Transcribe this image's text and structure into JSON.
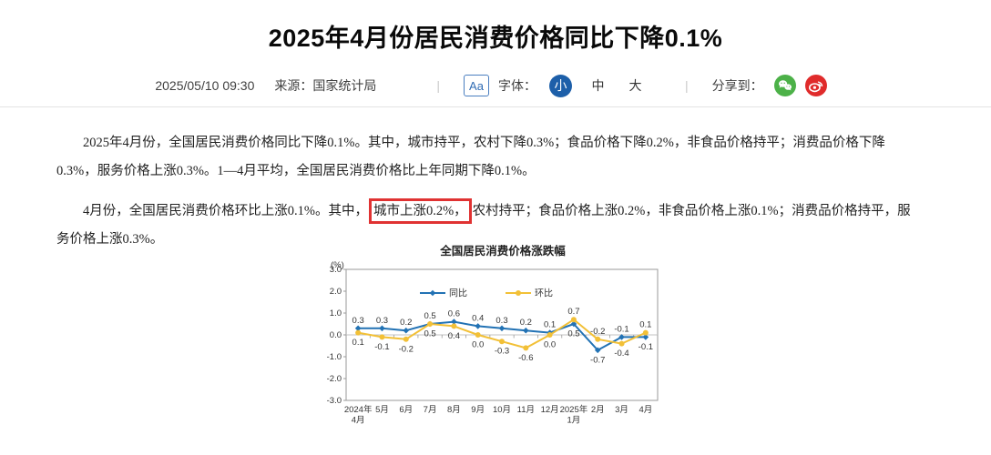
{
  "page": {
    "title": "2025年4月份居民消费价格同比下降0.1%"
  },
  "meta": {
    "datetime": "2025/05/10 09:30",
    "source_label": "来源：",
    "source": "国家统计局",
    "separator": "|",
    "font_tool": "Aa",
    "font_label": "字体：",
    "font_small": "小",
    "font_medium": "中",
    "font_large": "大",
    "share_label": "分享到：",
    "wechat_icon": "wechat-icon",
    "weibo_icon": "weibo-icon"
  },
  "article": {
    "para1": "2025年4月份，全国居民消费价格同比下降0.1%。其中，城市持平，农村下降0.3%；食品价格下降0.2%，非食品价格持平；消费品价格下降0.3%，服务价格上涨0.3%。1—4月平均，全国居民消费价格比上年同期下降0.1%。",
    "para2_before": "4月份，全国居民消费价格环比上涨0.1%。其中，",
    "para2_highlight": "城市上涨0.2%，",
    "para2_after": "农村持平；食品价格上涨0.2%，非食品价格上涨0.1%；消费品价格持平，服务价格上涨0.3%。"
  },
  "chart_data": {
    "type": "line",
    "title": "全国居民消费价格涨跌幅",
    "unit_label": "(%)",
    "categories": [
      [
        "2024年",
        "4月"
      ],
      [
        "5月"
      ],
      [
        "6月"
      ],
      [
        "7月"
      ],
      [
        "8月"
      ],
      [
        "9月"
      ],
      [
        "10月"
      ],
      [
        "11月"
      ],
      [
        "12月"
      ],
      [
        "2025年",
        "1月"
      ],
      [
        "2月"
      ],
      [
        "3月"
      ],
      [
        "4月"
      ]
    ],
    "series": [
      {
        "name": "同比",
        "color": "#2272b4",
        "marker": "diamond",
        "values": [
          0.3,
          0.3,
          0.2,
          0.5,
          0.6,
          0.4,
          0.3,
          0.2,
          0.1,
          0.5,
          -0.7,
          -0.1,
          -0.1
        ]
      },
      {
        "name": "环比",
        "color": "#f2c037",
        "marker": "circle",
        "values": [
          0.1,
          -0.1,
          -0.2,
          0.5,
          0.4,
          0.0,
          -0.3,
          -0.6,
          0.0,
          0.7,
          -0.2,
          -0.4,
          0.1
        ]
      }
    ],
    "ylim": [
      -3.0,
      3.0
    ],
    "ytick_step": 1.0,
    "legend_position": "top-inside",
    "grid": false
  },
  "colors": {
    "accent_blue": "#1d5fa9",
    "highlight_red": "#e03232",
    "wechat_green": "#4cb148",
    "weibo_red": "#e02b2b",
    "divider_gray": "#e3e3e3"
  }
}
